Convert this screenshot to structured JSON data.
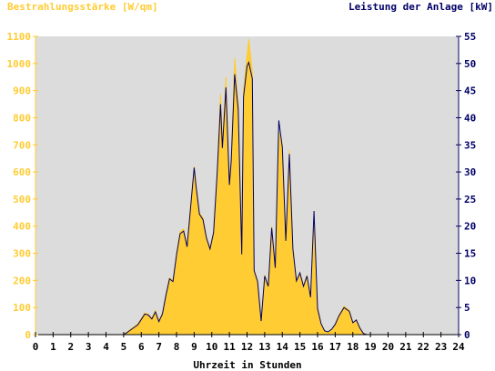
{
  "chart_data": {
    "type": "area",
    "title": "",
    "left_axis_label": "Bestrahlungsstärke [W/qm]",
    "right_axis_label": "Leistung der Anlage [kW]",
    "xlabel": "Uhrzeit in Stunden",
    "xlim": [
      0,
      24
    ],
    "ylim_left": [
      0,
      1100
    ],
    "ylim_right": [
      0,
      55
    ],
    "x_ticks": [
      "0",
      "1",
      "2",
      "3",
      "4",
      "5",
      "6",
      "7",
      "8",
      "9",
      "10",
      "11",
      "12",
      "13",
      "14",
      "15",
      "16",
      "17",
      "18",
      "19",
      "20",
      "21",
      "22",
      "23",
      "24"
    ],
    "y_left_ticks": [
      "0",
      "100",
      "200",
      "300",
      "400",
      "500",
      "600",
      "700",
      "800",
      "900",
      "1000",
      "1100"
    ],
    "y_right_ticks": [
      "0",
      "5",
      "10",
      "15",
      "20",
      "25",
      "30",
      "35",
      "40",
      "45",
      "50",
      "55"
    ],
    "colors": {
      "irradiance": "#ffcc33",
      "power": "#000066",
      "left_axis": "#ffcc33",
      "right_axis": "#000066",
      "plot_bg": "#dcdcdc"
    },
    "grid": false,
    "series": [
      {
        "name": "Bestrahlungsstärke [W/qm]",
        "axis": "left",
        "x": [
          0,
          5.0,
          5.2,
          5.5,
          5.8,
          6.0,
          6.2,
          6.4,
          6.6,
          6.8,
          7.0,
          7.2,
          7.4,
          7.6,
          7.8,
          8.0,
          8.2,
          8.4,
          8.6,
          8.8,
          9.0,
          9.1,
          9.3,
          9.5,
          9.7,
          9.9,
          10.1,
          10.3,
          10.5,
          10.6,
          10.8,
          11.0,
          11.1,
          11.3,
          11.5,
          11.7,
          11.8,
          12.0,
          12.1,
          12.3,
          12.4,
          12.6,
          12.8,
          13.0,
          13.2,
          13.4,
          13.6,
          13.8,
          14.0,
          14.2,
          14.4,
          14.6,
          14.8,
          15.0,
          15.2,
          15.4,
          15.6,
          15.8,
          16.0,
          16.2,
          16.4,
          16.6,
          16.8,
          17.0,
          17.2,
          17.5,
          17.8,
          18.0,
          18.2,
          18.4,
          18.6,
          18.8,
          19.0,
          19.3,
          19.6,
          20.0,
          24
        ],
        "values": [
          0,
          0,
          10,
          25,
          40,
          60,
          80,
          75,
          60,
          90,
          50,
          80,
          150,
          210,
          200,
          300,
          380,
          390,
          330,
          480,
          620,
          560,
          450,
          430,
          360,
          320,
          380,
          600,
          890,
          700,
          950,
          560,
          650,
          1020,
          850,
          300,
          900,
          1030,
          1090,
          970,
          240,
          200,
          50,
          220,
          180,
          400,
          250,
          750,
          700,
          350,
          680,
          320,
          200,
          230,
          180,
          220,
          140,
          400,
          100,
          40,
          15,
          10,
          20,
          40,
          70,
          105,
          90,
          45,
          55,
          25,
          5,
          0,
          0,
          0,
          0,
          0,
          0
        ]
      },
      {
        "name": "Leistung der Anlage [kW]",
        "axis": "right",
        "x": [
          0,
          5.0,
          5.2,
          5.5,
          5.8,
          6.0,
          6.2,
          6.4,
          6.6,
          6.8,
          7.0,
          7.2,
          7.4,
          7.6,
          7.8,
          8.0,
          8.2,
          8.4,
          8.6,
          8.8,
          9.0,
          9.1,
          9.3,
          9.5,
          9.7,
          9.9,
          10.1,
          10.3,
          10.5,
          10.6,
          10.8,
          11.0,
          11.1,
          11.3,
          11.5,
          11.7,
          11.8,
          12.0,
          12.1,
          12.3,
          12.4,
          12.6,
          12.8,
          13.0,
          13.2,
          13.4,
          13.6,
          13.8,
          14.0,
          14.2,
          14.4,
          14.6,
          14.8,
          15.0,
          15.2,
          15.4,
          15.6,
          15.8,
          16.0,
          16.2,
          16.4,
          16.6,
          16.8,
          17.0,
          17.2,
          17.5,
          17.8,
          18.0,
          18.2,
          18.4,
          18.6,
          18.8,
          19.0,
          19.3,
          19.6,
          20.0,
          24
        ],
        "values": [
          0,
          0,
          0.4,
          1.1,
          1.8,
          2.8,
          3.8,
          3.6,
          2.9,
          4.2,
          2.4,
          3.8,
          7.3,
          10.3,
          9.8,
          14.7,
          18.6,
          19.1,
          16.2,
          23.5,
          30.8,
          27.6,
          22.2,
          21.2,
          17.8,
          15.8,
          18.8,
          29.6,
          42.5,
          34.4,
          45.6,
          27.6,
          32.0,
          48.0,
          41.6,
          14.8,
          43.8,
          49.5,
          50.2,
          47.2,
          11.8,
          9.8,
          2.5,
          10.8,
          8.9,
          19.7,
          12.3,
          39.5,
          34.5,
          17.3,
          33.3,
          15.8,
          9.9,
          11.4,
          8.9,
          10.8,
          6.9,
          22.8,
          4.8,
          2.0,
          0.7,
          0.5,
          1.0,
          1.9,
          3.4,
          5.0,
          4.3,
          2.2,
          2.7,
          1.2,
          0.2,
          0,
          0,
          0,
          0,
          0,
          0
        ]
      }
    ]
  }
}
